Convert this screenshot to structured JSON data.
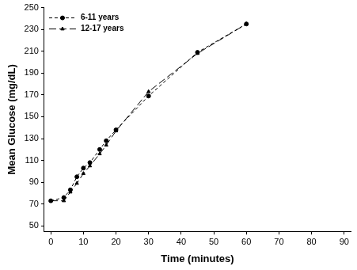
{
  "chart_data": {
    "type": "line",
    "x_label": "Time (minutes)",
    "y_label": "Mean Glucose (mg/dL)",
    "x": [
      0,
      4,
      6,
      8,
      10,
      12,
      15,
      17,
      20,
      30,
      45,
      60
    ],
    "series": [
      {
        "name": "6-11 years",
        "color": "#000000",
        "marker": "circle",
        "line_style": "dashed",
        "values": [
          73,
          76,
          83,
          95,
          103,
          108,
          120,
          128,
          138,
          169,
          209,
          235
        ]
      },
      {
        "name": "12-17 years",
        "color": "#000000",
        "marker": "triangle",
        "line_style": "long_dash",
        "values": [
          73,
          73,
          81,
          89,
          98,
          105,
          116,
          124,
          137,
          173,
          208,
          235
        ]
      }
    ],
    "xlim": [
      -2,
      92
    ],
    "xticks": [
      0,
      10,
      20,
      30,
      40,
      50,
      60,
      70,
      80,
      90
    ],
    "ylim": [
      45,
      250
    ],
    "yticks": [
      50,
      70,
      90,
      110,
      130,
      150,
      170,
      190,
      210,
      230,
      250
    ],
    "grid": false,
    "legend": "top-left"
  }
}
